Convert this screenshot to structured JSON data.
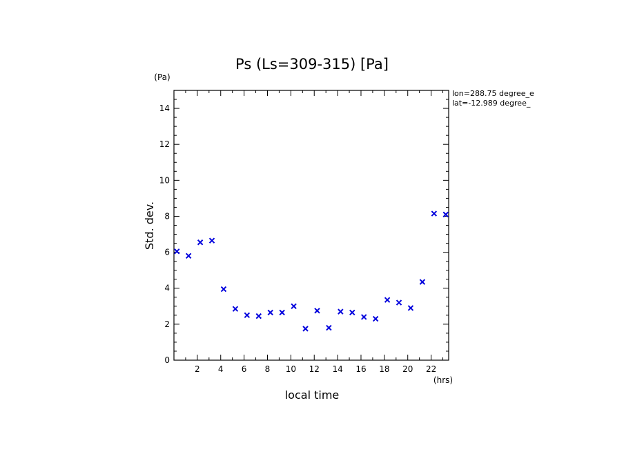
{
  "chart_data": {
    "type": "scatter",
    "title": "Ps (Ls=309-315) [Pa]",
    "xlabel": "local time",
    "ylabel": "Std. dev.",
    "x_unit": "(hrs)",
    "y_unit": "(Pa)",
    "xlim": [
      0,
      23.5
    ],
    "ylim": [
      0,
      15
    ],
    "x_ticks": [
      2,
      4,
      6,
      8,
      10,
      12,
      14,
      16,
      18,
      20,
      22
    ],
    "y_ticks": [
      0,
      2,
      4,
      6,
      8,
      10,
      12,
      14
    ],
    "marker": "x",
    "marker_color": "#0000dd",
    "info_lines": [
      "lon=288.75 degree_e",
      "lat=-12.989 degree_"
    ],
    "series": [
      {
        "x": [
          0.25,
          1.25,
          2.25,
          3.25,
          4.25,
          5.25,
          6.25,
          7.25,
          8.25,
          9.25,
          10.25,
          11.25,
          12.25,
          13.25,
          14.25,
          15.25,
          16.25,
          17.25,
          18.25,
          19.25,
          20.25,
          21.25,
          22.25,
          23.25
        ],
        "y": [
          6.05,
          5.8,
          6.55,
          6.65,
          3.95,
          2.85,
          2.5,
          2.45,
          2.65,
          2.65,
          3.0,
          1.75,
          2.75,
          1.8,
          2.7,
          2.65,
          2.4,
          2.3,
          3.35,
          3.2,
          2.9,
          4.35,
          8.15,
          8.1
        ]
      }
    ]
  }
}
